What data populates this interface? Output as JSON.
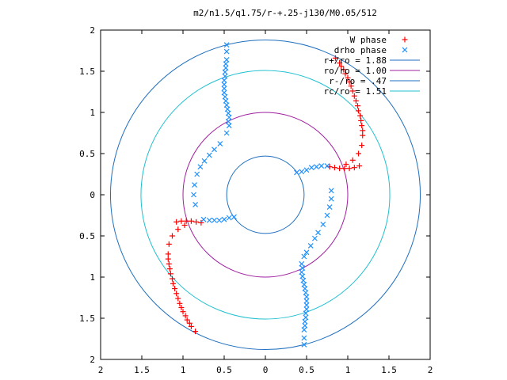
{
  "chart_data": {
    "type": "scatter",
    "title": "m2/n1.5/q1.75/r-+.25-j130/M0.05/512",
    "xlim": [
      -2,
      2
    ],
    "ylim": [
      -2,
      2
    ],
    "x_ticks": [
      {
        "v": -2,
        "label": "2"
      },
      {
        "v": -1.5,
        "label": "1.5"
      },
      {
        "v": -1,
        "label": "1"
      },
      {
        "v": -0.5,
        "label": "0.5"
      },
      {
        "v": 0,
        "label": "0"
      },
      {
        "v": 0.5,
        "label": "0.5"
      },
      {
        "v": 1,
        "label": "1"
      },
      {
        "v": 1.5,
        "label": "1.5"
      },
      {
        "v": 2,
        "label": "2"
      }
    ],
    "y_ticks": [
      {
        "v": 2,
        "label": "2"
      },
      {
        "v": 1.5,
        "label": "1.5"
      },
      {
        "v": 1,
        "label": "1"
      },
      {
        "v": 0.5,
        "label": "0.5"
      },
      {
        "v": 0,
        "label": "0"
      },
      {
        "v": -0.5,
        "label": "0.5"
      },
      {
        "v": -1,
        "label": "1"
      },
      {
        "v": -1.5,
        "label": "1.5"
      },
      {
        "v": -2,
        "label": "2"
      }
    ],
    "grid": false,
    "legend_position": "top-right",
    "circles": [
      {
        "name": "r+/ro = 1.88",
        "r": 1.88,
        "color": "#1f6fbf"
      },
      {
        "name": "ro/ro = 1.00",
        "r": 1.0,
        "color": "#a020a0"
      },
      {
        "name": "r-/ro = .47",
        "r": 0.47,
        "color": "#1f6fbf"
      },
      {
        "name": "rc/ro = 1.51",
        "r": 1.51,
        "color": "#20c0d0"
      }
    ],
    "series": [
      {
        "name": "W phase",
        "marker": "plus",
        "color": "#ff0000",
        "points": [
          [
            1.14,
            0.35
          ],
          [
            1.08,
            0.33
          ],
          [
            1.02,
            0.32
          ],
          [
            0.96,
            0.32
          ],
          [
            0.9,
            0.32
          ],
          [
            0.84,
            0.33
          ],
          [
            0.78,
            0.34
          ],
          [
            0.98,
            0.37
          ],
          [
            1.06,
            0.42
          ],
          [
            1.13,
            0.5
          ],
          [
            1.17,
            0.6
          ],
          [
            1.18,
            0.72
          ],
          [
            1.17,
            0.84
          ],
          [
            1.15,
            0.96
          ],
          [
            1.12,
            1.08
          ],
          [
            1.08,
            1.2
          ],
          [
            1.04,
            1.32
          ],
          [
            1.0,
            1.42
          ],
          [
            0.95,
            1.52
          ],
          [
            0.9,
            1.6
          ],
          [
            0.85,
            1.66
          ],
          [
            1.18,
            0.78
          ],
          [
            1.16,
            0.9
          ],
          [
            1.13,
            1.02
          ],
          [
            1.1,
            1.14
          ],
          [
            1.06,
            1.26
          ],
          [
            1.02,
            1.37
          ],
          [
            0.97,
            1.47
          ],
          [
            0.92,
            1.56
          ],
          [
            -0.98,
            -0.37
          ],
          [
            -1.06,
            -0.42
          ],
          [
            -1.13,
            -0.5
          ],
          [
            -1.17,
            -0.6
          ],
          [
            -1.18,
            -0.72
          ],
          [
            -1.17,
            -0.84
          ],
          [
            -1.15,
            -0.96
          ],
          [
            -1.12,
            -1.08
          ],
          [
            -1.08,
            -1.2
          ],
          [
            -1.04,
            -1.32
          ],
          [
            -1.0,
            -1.42
          ],
          [
            -0.95,
            -1.52
          ],
          [
            -0.9,
            -1.6
          ],
          [
            -0.85,
            -1.66
          ],
          [
            -1.18,
            -0.78
          ],
          [
            -1.16,
            -0.9
          ],
          [
            -1.13,
            -1.02
          ],
          [
            -1.1,
            -1.14
          ],
          [
            -1.06,
            -1.26
          ],
          [
            -1.02,
            -1.37
          ],
          [
            -0.97,
            -1.47
          ],
          [
            -0.92,
            -1.56
          ],
          [
            -1.08,
            -0.33
          ],
          [
            -1.02,
            -0.32
          ],
          [
            -0.96,
            -0.32
          ],
          [
            -0.9,
            -0.32
          ],
          [
            -0.84,
            -0.33
          ],
          [
            -0.78,
            -0.34
          ]
        ]
      },
      {
        "name": "drho phase",
        "marker": "cross",
        "color": "#1e90ff",
        "points": [
          [
            0.75,
            0.35
          ],
          [
            0.68,
            0.35
          ],
          [
            0.62,
            0.34
          ],
          [
            0.56,
            0.33
          ],
          [
            0.5,
            0.3
          ],
          [
            0.44,
            0.28
          ],
          [
            0.38,
            0.27
          ],
          [
            0.8,
            0.05
          ],
          [
            0.8,
            -0.05
          ],
          [
            0.78,
            -0.15
          ],
          [
            0.75,
            -0.25
          ],
          [
            0.7,
            -0.36
          ],
          [
            0.64,
            -0.46
          ],
          [
            0.6,
            -0.53
          ],
          [
            0.55,
            -0.62
          ],
          [
            0.5,
            -0.7
          ],
          [
            0.47,
            -0.75
          ],
          [
            0.44,
            -0.84
          ],
          [
            0.44,
            -0.94
          ],
          [
            0.46,
            -1.04
          ],
          [
            0.48,
            -1.14
          ],
          [
            0.5,
            -1.24
          ],
          [
            0.5,
            -1.34
          ],
          [
            0.49,
            -1.44
          ],
          [
            0.48,
            -1.54
          ],
          [
            0.47,
            -1.64
          ],
          [
            0.47,
            -1.74
          ],
          [
            0.47,
            -1.82
          ],
          [
            0.45,
            -0.89
          ],
          [
            0.45,
            -0.99
          ],
          [
            0.47,
            -1.09
          ],
          [
            0.49,
            -1.19
          ],
          [
            0.5,
            -1.29
          ],
          [
            0.5,
            -1.39
          ],
          [
            0.49,
            -1.49
          ],
          [
            0.48,
            -1.59
          ],
          [
            -0.75,
            -0.3
          ],
          [
            -0.68,
            -0.31
          ],
          [
            -0.62,
            -0.31
          ],
          [
            -0.56,
            -0.31
          ],
          [
            -0.5,
            -0.3
          ],
          [
            -0.44,
            -0.28
          ],
          [
            -0.38,
            -0.27
          ],
          [
            -0.47,
            0.75
          ],
          [
            -0.44,
            0.84
          ],
          [
            -0.44,
            0.94
          ],
          [
            -0.46,
            1.04
          ],
          [
            -0.48,
            1.14
          ],
          [
            -0.5,
            1.24
          ],
          [
            -0.5,
            1.34
          ],
          [
            -0.49,
            1.44
          ],
          [
            -0.48,
            1.54
          ],
          [
            -0.47,
            1.64
          ],
          [
            -0.47,
            1.74
          ],
          [
            -0.47,
            1.82
          ],
          [
            -0.45,
            0.89
          ],
          [
            -0.45,
            0.99
          ],
          [
            -0.47,
            1.09
          ],
          [
            -0.49,
            1.19
          ],
          [
            -0.5,
            1.29
          ],
          [
            -0.5,
            1.39
          ],
          [
            -0.49,
            1.49
          ],
          [
            -0.48,
            1.59
          ],
          [
            -0.55,
            0.62
          ],
          [
            -0.62,
            0.55
          ],
          [
            -0.68,
            0.48
          ],
          [
            -0.74,
            0.41
          ],
          [
            -0.79,
            0.34
          ],
          [
            -0.83,
            0.25
          ],
          [
            -0.86,
            0.12
          ],
          [
            -0.87,
            0.0
          ],
          [
            -0.85,
            -0.12
          ]
        ]
      }
    ]
  }
}
